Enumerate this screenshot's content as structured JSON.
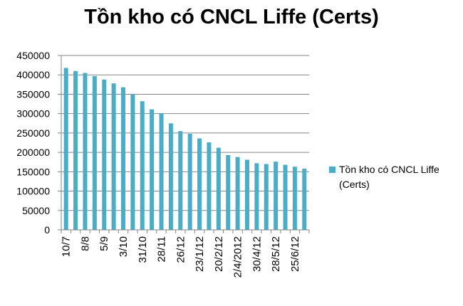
{
  "chart_data": {
    "type": "bar",
    "title": "Tồn kho có CNCL Liffe (Certs)",
    "xlabel": "",
    "ylabel": "",
    "ylim": [
      0,
      450000
    ],
    "yticks": [
      0,
      50000,
      100000,
      150000,
      200000,
      250000,
      300000,
      350000,
      400000,
      450000
    ],
    "grid": true,
    "legend_position": "right",
    "categories": [
      "10/7",
      "",
      "8/8",
      "",
      "5/9",
      "",
      "3/10",
      "",
      "31/10",
      "",
      "28/11",
      "",
      "26/12",
      "",
      "23/1/12",
      "",
      "20/2/12",
      "",
      "2/4/2012",
      "",
      "30/4/12",
      "",
      "28/5/12",
      "",
      "25/6/12",
      ""
    ],
    "series": [
      {
        "name": "Tồn kho có CNCL Liffe (Certs)",
        "color": "#4bacc6",
        "values": [
          418000,
          410000,
          405000,
          397000,
          388000,
          378000,
          368000,
          350000,
          332000,
          311000,
          301000,
          275000,
          255000,
          248000,
          236000,
          226000,
          212000,
          193000,
          188000,
          181000,
          172000,
          170000,
          176000,
          168000,
          163000,
          158000
        ]
      }
    ]
  }
}
